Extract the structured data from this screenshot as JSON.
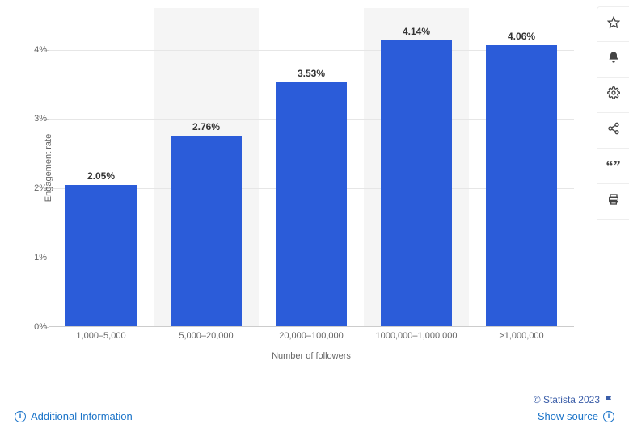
{
  "chart": {
    "type": "bar",
    "categories": [
      "1,000–5,000",
      "5,000–20,000",
      "20,000–100,000",
      "1000,000–1,000,000",
      ">1,000,000"
    ],
    "values": [
      2.05,
      2.76,
      3.53,
      4.14,
      4.06
    ],
    "value_labels": [
      "2.05%",
      "2.76%",
      "3.53%",
      "4.14%",
      "4.06%"
    ],
    "bar_color": "#2b5cd9",
    "alt_band_color": "#f5f5f5",
    "grid_color": "#e6e6e6",
    "ylabel": "Engagement rate",
    "xlabel": "Number of followers",
    "ylim": [
      0,
      4.6
    ],
    "yticks": [
      0,
      1,
      2,
      3,
      4
    ],
    "ytick_labels": [
      "0%",
      "1%",
      "2%",
      "3%",
      "4%"
    ],
    "bar_width_ratio": 0.68,
    "label_fontsize": 11,
    "value_label_fontsize": 12,
    "background_color": "#ffffff"
  },
  "toolbar": {
    "items": [
      {
        "name": "star-icon",
        "title": "Favorite"
      },
      {
        "name": "bell-icon",
        "title": "Notify"
      },
      {
        "name": "gear-icon",
        "title": "Settings"
      },
      {
        "name": "share-icon",
        "title": "Share"
      },
      {
        "name": "quote-icon",
        "title": "Cite"
      },
      {
        "name": "print-icon",
        "title": "Print"
      }
    ]
  },
  "footer": {
    "additional_info": "Additional Information",
    "copyright": "© Statista 2023",
    "show_source": "Show source"
  }
}
